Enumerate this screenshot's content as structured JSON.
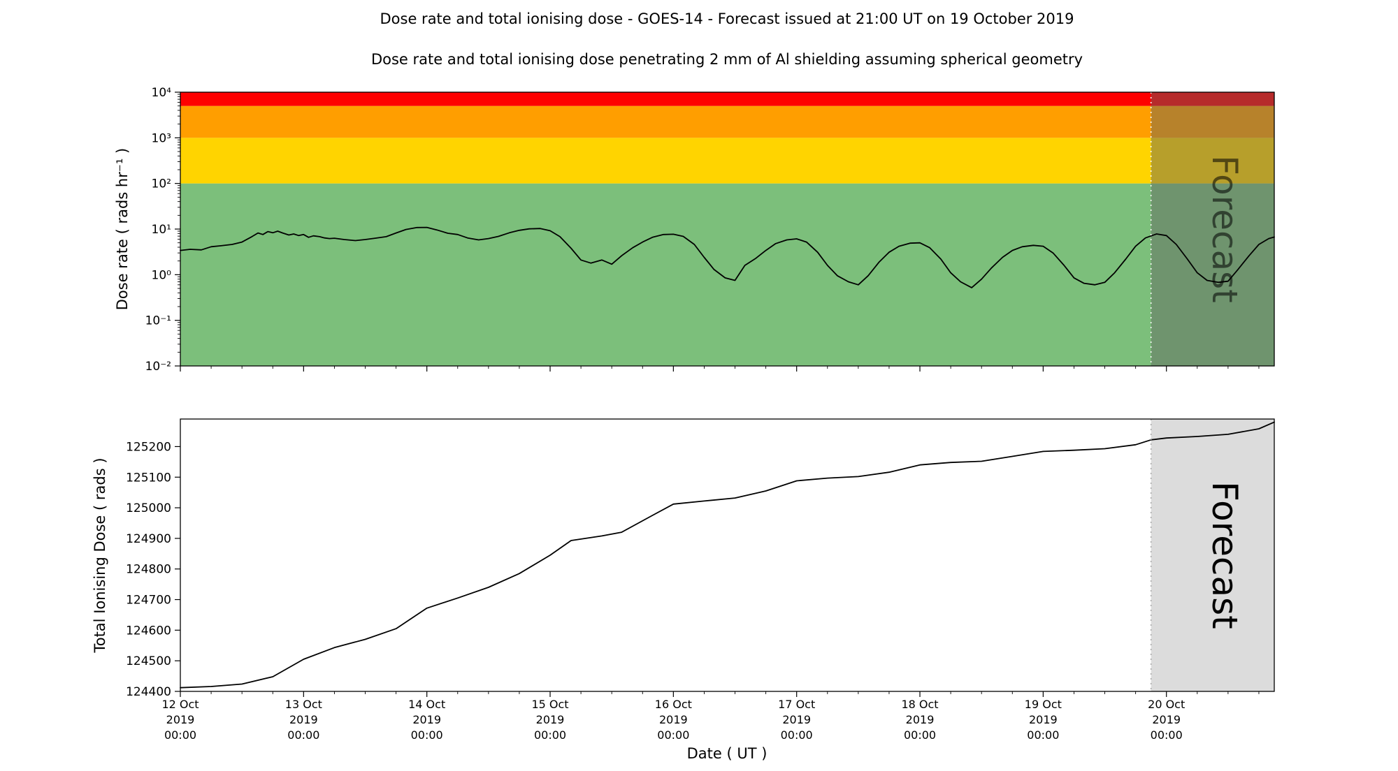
{
  "page": {
    "title": "Dose rate and total ionising dose - GOES-14 - Forecast issued at 21:00 UT on 19 October 2019",
    "subtitle": "Dose rate and total ionising dose penetrating 2 mm of Al shielding assuming spherical geometry"
  },
  "x_axis": {
    "label": "Date ( UT )",
    "minor_tick_hours": 6,
    "major_ticks": [
      {
        "t": 0,
        "lines": [
          "12 Oct",
          "2019",
          "00:00"
        ]
      },
      {
        "t": 1,
        "lines": [
          "13 Oct",
          "2019",
          "00:00"
        ]
      },
      {
        "t": 2,
        "lines": [
          "14 Oct",
          "2019",
          "00:00"
        ]
      },
      {
        "t": 3,
        "lines": [
          "15 Oct",
          "2019",
          "00:00"
        ]
      },
      {
        "t": 4,
        "lines": [
          "16 Oct",
          "2019",
          "00:00"
        ]
      },
      {
        "t": 5,
        "lines": [
          "17 Oct",
          "2019",
          "00:00"
        ]
      },
      {
        "t": 6,
        "lines": [
          "18 Oct",
          "2019",
          "00:00"
        ]
      },
      {
        "t": 7,
        "lines": [
          "19 Oct",
          "2019",
          "00:00"
        ]
      },
      {
        "t": 8,
        "lines": [
          "20 Oct",
          "2019",
          "00:00"
        ]
      }
    ]
  },
  "chart_data": [
    {
      "type": "line",
      "name": "dose-rate",
      "ylabel": "Dose rate ( rads hr⁻¹ )",
      "yscale": "log",
      "ylim": [
        0.01,
        10000
      ],
      "xlim_days": [
        0,
        8.875
      ],
      "forecast_start_days": 7.875,
      "forecast_label": "Forecast",
      "forecast_overlay_color": "rgba(95,95,95,0.45)",
      "divider_color": "#ffffff",
      "yticks": [
        {
          "value": 0.01,
          "label": "10⁻²"
        },
        {
          "value": 0.1,
          "label": "10⁻¹"
        },
        {
          "value": 1,
          "label": "10⁰"
        },
        {
          "value": 10,
          "label": "10¹"
        },
        {
          "value": 100,
          "label": "10²"
        },
        {
          "value": 1000,
          "label": "10³"
        },
        {
          "value": 10000,
          "label": "10⁴"
        }
      ],
      "bands": [
        {
          "name": "green-nominal",
          "from": 0.01,
          "to": 100,
          "color": "#7cbf7b"
        },
        {
          "name": "yellow-warning",
          "from": 100,
          "to": 1000,
          "color": "#ffd400"
        },
        {
          "name": "orange-alert",
          "from": 1000,
          "to": 5000,
          "color": "#ff9e00"
        },
        {
          "name": "red-severe",
          "from": 5000,
          "to": 10000,
          "color": "#fe0000"
        }
      ],
      "line_color": "#000000",
      "series": [
        {
          "name": "dose_rate_rads_hr",
          "x": [
            0,
            0.08,
            0.17,
            0.25,
            0.33,
            0.42,
            0.5,
            0.58,
            0.63,
            0.67,
            0.71,
            0.75,
            0.79,
            0.83,
            0.88,
            0.92,
            0.96,
            1,
            1.04,
            1.08,
            1.13,
            1.17,
            1.21,
            1.25,
            1.33,
            1.42,
            1.5,
            1.58,
            1.67,
            1.75,
            1.83,
            1.92,
            2,
            2.08,
            2.17,
            2.25,
            2.33,
            2.42,
            2.5,
            2.58,
            2.67,
            2.75,
            2.83,
            2.92,
            3,
            3.08,
            3.17,
            3.25,
            3.33,
            3.42,
            3.5,
            3.58,
            3.67,
            3.75,
            3.83,
            3.92,
            4,
            4.08,
            4.17,
            4.25,
            4.33,
            4.42,
            4.5,
            4.58,
            4.67,
            4.75,
            4.83,
            4.92,
            5,
            5.08,
            5.17,
            5.25,
            5.33,
            5.42,
            5.5,
            5.58,
            5.67,
            5.75,
            5.83,
            5.92,
            6,
            6.08,
            6.17,
            6.25,
            6.33,
            6.42,
            6.5,
            6.58,
            6.67,
            6.75,
            6.83,
            6.92,
            7,
            7.08,
            7.17,
            7.25,
            7.33,
            7.42,
            7.5,
            7.58,
            7.67,
            7.75,
            7.83,
            7.92,
            8,
            8.08,
            8.17,
            8.25,
            8.33,
            8.42,
            8.5,
            8.58,
            8.67,
            8.75,
            8.83,
            8.875
          ],
          "y": [
            3.4,
            3.6,
            3.5,
            4.1,
            4.3,
            4.6,
            5.2,
            6.8,
            8.2,
            7.6,
            8.8,
            8.3,
            9.0,
            8.2,
            7.4,
            7.8,
            7.2,
            7.6,
            6.6,
            7.1,
            6.8,
            6.4,
            6.2,
            6.3,
            5.9,
            5.6,
            5.9,
            6.3,
            6.8,
            8.2,
            9.8,
            10.8,
            10.9,
            9.6,
            8.1,
            7.6,
            6.4,
            5.8,
            6.2,
            6.9,
            8.3,
            9.4,
            10.1,
            10.3,
            9.2,
            6.8,
            3.8,
            2.1,
            1.8,
            2.1,
            1.7,
            2.6,
            3.9,
            5.2,
            6.6,
            7.6,
            7.7,
            6.9,
            4.6,
            2.4,
            1.3,
            0.85,
            0.75,
            1.6,
            2.3,
            3.4,
            4.8,
            5.8,
            6.1,
            5.2,
            3.1,
            1.6,
            0.95,
            0.7,
            0.6,
            0.95,
            1.9,
            3.1,
            4.2,
            4.9,
            5.0,
            3.9,
            2.2,
            1.1,
            0.7,
            0.52,
            0.8,
            1.4,
            2.4,
            3.4,
            4.1,
            4.4,
            4.2,
            3.0,
            1.6,
            0.85,
            0.65,
            0.6,
            0.68,
            1.1,
            2.2,
            4.2,
            6.4,
            7.8,
            7.2,
            4.6,
            2.2,
            1.1,
            0.75,
            0.68,
            0.72,
            1.3,
            2.6,
            4.6,
            6.2,
            6.7
          ]
        }
      ]
    },
    {
      "type": "line",
      "name": "total-dose",
      "ylabel": "Total Ionising Dose ( rads )",
      "yscale": "linear",
      "ylim": [
        124400,
        125290
      ],
      "xlim_days": [
        0,
        8.875
      ],
      "forecast_start_days": 7.875,
      "forecast_label": "Forecast",
      "forecast_overlay_color": "#dcdcdc",
      "divider_color": "#aaaaaa",
      "yticks": [
        124400,
        124500,
        124600,
        124700,
        124800,
        124900,
        125000,
        125100,
        125200
      ],
      "line_color": "#000000",
      "series": [
        {
          "name": "total_ionising_dose_rads",
          "x": [
            0,
            0.25,
            0.5,
            0.75,
            1,
            1.25,
            1.5,
            1.75,
            2,
            2.25,
            2.5,
            2.75,
            3,
            3.17,
            3.42,
            3.58,
            3.83,
            4,
            4.25,
            4.5,
            4.75,
            5,
            5.25,
            5.5,
            5.75,
            6,
            6.25,
            6.5,
            6.75,
            7,
            7.25,
            7.5,
            7.75,
            7.875,
            8,
            8.25,
            8.5,
            8.75,
            8.875
          ],
          "y": [
            124412,
            124416,
            124424,
            124448,
            124505,
            124543,
            124570,
            124605,
            124672,
            124705,
            124740,
            124785,
            124845,
            124893,
            124908,
            124920,
            124975,
            125012,
            125022,
            125032,
            125055,
            125088,
            125097,
            125102,
            125116,
            125140,
            125148,
            125152,
            125168,
            125184,
            125188,
            125193,
            125206,
            125222,
            125228,
            125233,
            125240,
            125258,
            125280
          ]
        }
      ]
    }
  ]
}
